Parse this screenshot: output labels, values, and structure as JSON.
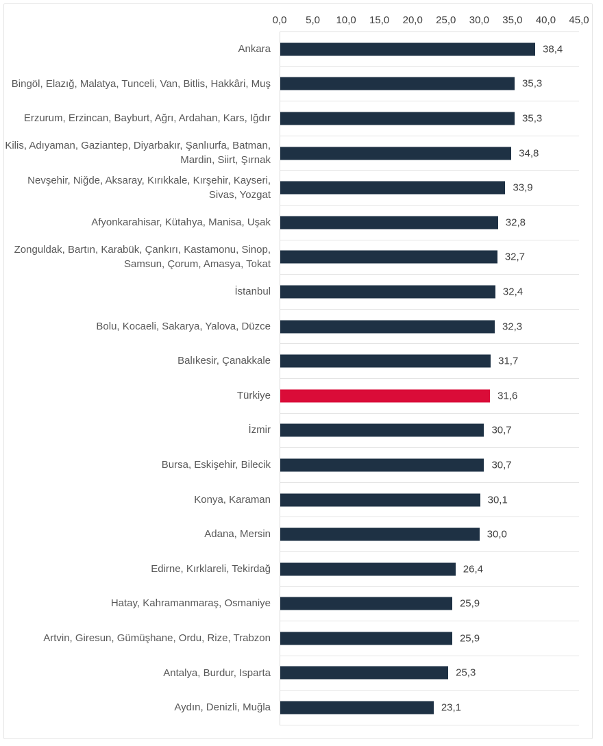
{
  "chart_data": {
    "type": "bar",
    "orientation": "horizontal",
    "title": "",
    "xlabel": "",
    "ylabel": "",
    "xlim": [
      0,
      45
    ],
    "grid": true,
    "axis_position": "top",
    "x_ticks": [
      "0,0",
      "5,0",
      "10,0",
      "15,0",
      "20,0",
      "25,0",
      "30,0",
      "35,0",
      "40,0",
      "45,0"
    ],
    "categories": [
      "Ankara",
      "Bingöl, Elazığ, Malatya, Tunceli, Van, Bitlis, Hakkâri, Muş",
      "Erzurum, Erzincan, Bayburt, Ağrı, Ardahan, Kars, Iğdır",
      "Kilis, Adıyaman, Gaziantep, Diyarbakır, Şanlıurfa, Batman, Mardin, Siirt, Şırnak",
      "Nevşehir, Niğde, Aksaray, Kırıkkale, Kırşehir, Kayseri, Sivas, Yozgat",
      "Afyonkarahisar, Kütahya, Manisa, Uşak",
      "Zonguldak, Bartın, Karabük, Çankırı, Kastamonu, Sinop, Samsun, Çorum, Amasya, Tokat",
      "İstanbul",
      "Bolu, Kocaeli, Sakarya, Yalova, Düzce",
      "Balıkesir, Çanakkale",
      "Türkiye",
      "İzmir",
      "Bursa, Eskişehir, Bilecik",
      "Konya, Karaman",
      "Adana, Mersin",
      "Edirne, Kırklareli, Tekirdağ",
      "Hatay, Kahramanmaraş, Osmaniye",
      "Artvin, Giresun, Gümüşhane, Ordu, Rize, Trabzon",
      "Antalya, Burdur, Isparta",
      "Aydın, Denizli, Muğla"
    ],
    "values": [
      38.4,
      35.3,
      35.3,
      34.8,
      33.9,
      32.8,
      32.7,
      32.4,
      32.3,
      31.7,
      31.6,
      30.7,
      30.7,
      30.1,
      30.0,
      26.4,
      25.9,
      25.9,
      25.3,
      23.1
    ],
    "value_labels": [
      "38,4",
      "35,3",
      "35,3",
      "34,8",
      "33,9",
      "32,8",
      "32,7",
      "32,4",
      "32,3",
      "31,7",
      "31,6",
      "30,7",
      "30,7",
      "30,1",
      "30,0",
      "26,4",
      "25,9",
      "25,9",
      "25,3",
      "23,1"
    ],
    "highlight_category": "Türkiye",
    "highlight_index": 10,
    "colors": {
      "bar": "#1e3144",
      "highlight": "#da0c38",
      "gridline": "#e4e4e4",
      "axis_line": "#d9d9d9",
      "label_text": "#595959",
      "value_text": "#404040",
      "border": "#e6e6e6",
      "background": "#ffffff"
    }
  }
}
